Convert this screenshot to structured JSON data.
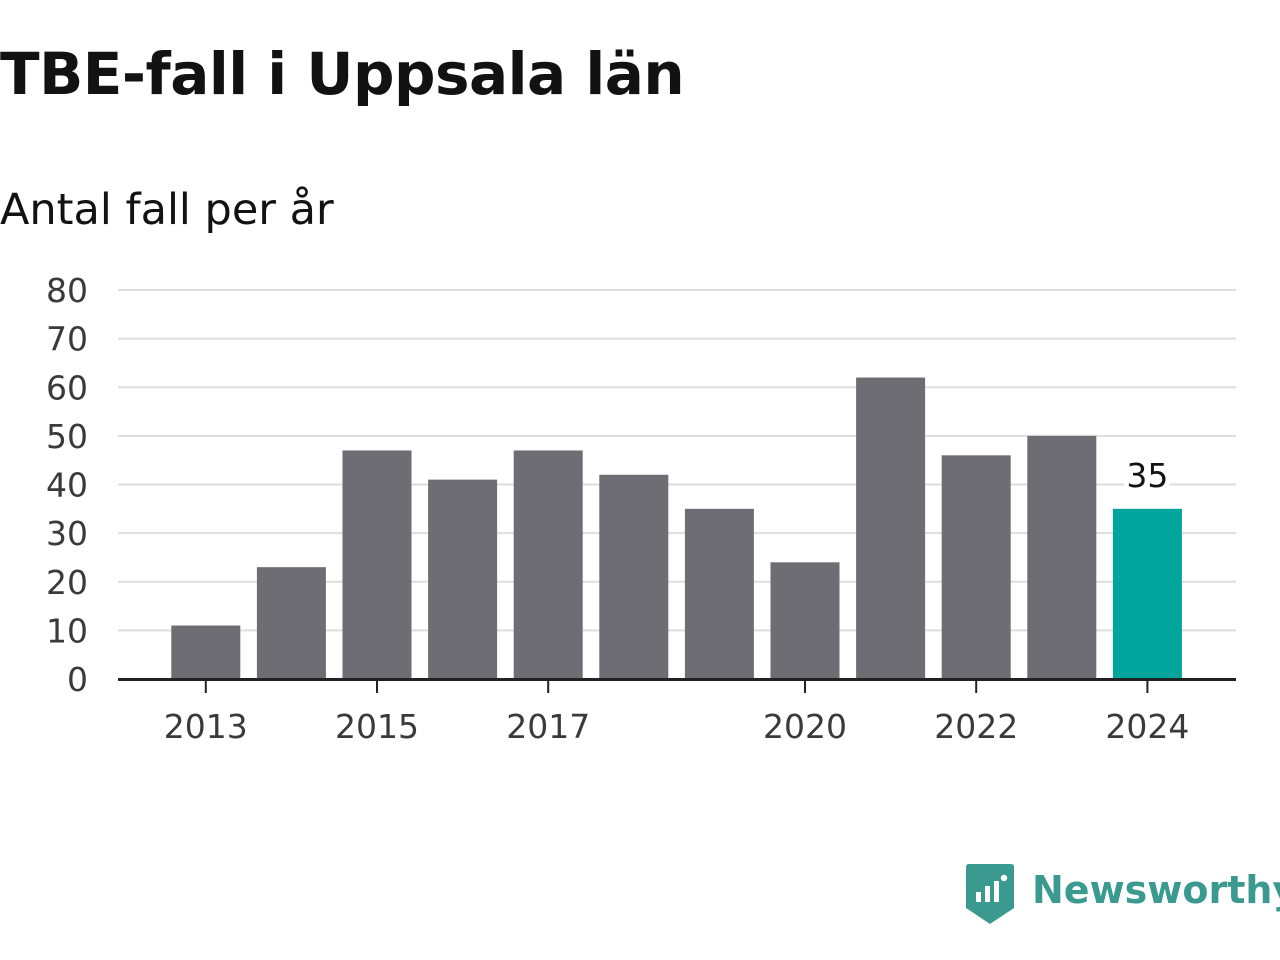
{
  "chart_data": {
    "type": "bar",
    "title": "TBE-fall i Uppsala län",
    "subtitle": "Antal fall per år",
    "categories": [
      "2013",
      "2014",
      "2015",
      "2016",
      "2017",
      "2018",
      "2019",
      "2020",
      "2021",
      "2022",
      "2023",
      "2024"
    ],
    "values": [
      11,
      23,
      47,
      41,
      47,
      42,
      35,
      24,
      62,
      46,
      50,
      35
    ],
    "x_tick_labels": [
      "2013",
      "2015",
      "2017",
      "2020",
      "2022",
      "2024"
    ],
    "y_ticks": [
      0,
      10,
      20,
      30,
      40,
      50,
      60,
      70,
      80
    ],
    "ylim": [
      0,
      80
    ],
    "grid": true,
    "highlight": {
      "category": "2024",
      "label": "35"
    },
    "colors": {
      "bar": "#6e6d73",
      "highlight": "#00a69c"
    }
  },
  "brand": {
    "name": "Newsworthy",
    "color": "#3a9a8f",
    "icon": "newsworthy-logo-icon"
  }
}
